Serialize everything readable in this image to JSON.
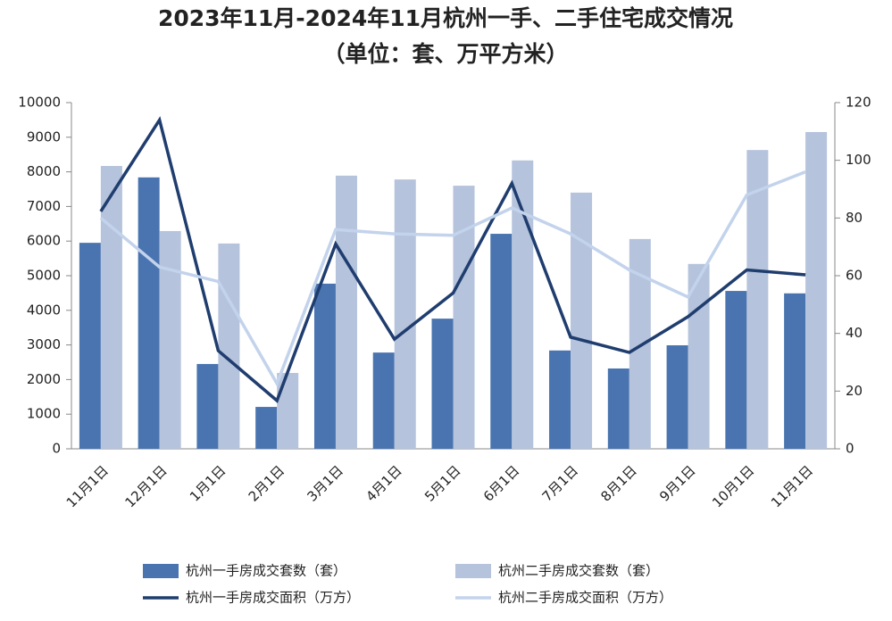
{
  "chart_data": {
    "type": "bar-line",
    "title": "2023年11月-2024年11月杭州一手、二手住宅成交情况",
    "subtitle": "（单位：套、万平方米）",
    "categories": [
      "11月1日",
      "12月1日",
      "1月1日",
      "2月1日",
      "3月1日",
      "4月1日",
      "5月1日",
      "6月1日",
      "7月1日",
      "8月1日",
      "9月1日",
      "10月1日",
      "11月1日"
    ],
    "ylim": [
      0,
      10000
    ],
    "yticks": [
      0,
      1000,
      2000,
      3000,
      4000,
      5000,
      6000,
      7000,
      8000,
      9000,
      10000
    ],
    "y2lim": [
      0,
      120
    ],
    "y2ticks": [
      0,
      20,
      40,
      60,
      80,
      100,
      120
    ],
    "series": [
      {
        "name": "杭州一手房成交套数（套）",
        "type": "bar",
        "color": "#4a74b0",
        "values": [
          5950,
          7840,
          2450,
          1210,
          4770,
          2780,
          3760,
          6210,
          2840,
          2320,
          2990,
          4560,
          4490
        ]
      },
      {
        "name": "杭州二手房成交套数（套）",
        "type": "bar",
        "color": "#b5c3dc",
        "values": [
          8170,
          6290,
          5930,
          2190,
          7890,
          7780,
          7600,
          8330,
          7400,
          6060,
          5340,
          8630,
          9150
        ]
      },
      {
        "name": "杭州一手房成交面积（万方）",
        "type": "line",
        "axis": "y2",
        "color": "#1f3d6e",
        "values": [
          82.3,
          114,
          34,
          16.7,
          71,
          38,
          54,
          92,
          38.7,
          33.4,
          45.8,
          62,
          60.3
        ]
      },
      {
        "name": "杭州二手房成交面积（万方）",
        "type": "line",
        "axis": "y2",
        "color": "#c3d3ec",
        "values": [
          80,
          63,
          58,
          22.6,
          76,
          74.5,
          74,
          83.5,
          74.5,
          62,
          52.6,
          88,
          96
        ]
      }
    ]
  }
}
